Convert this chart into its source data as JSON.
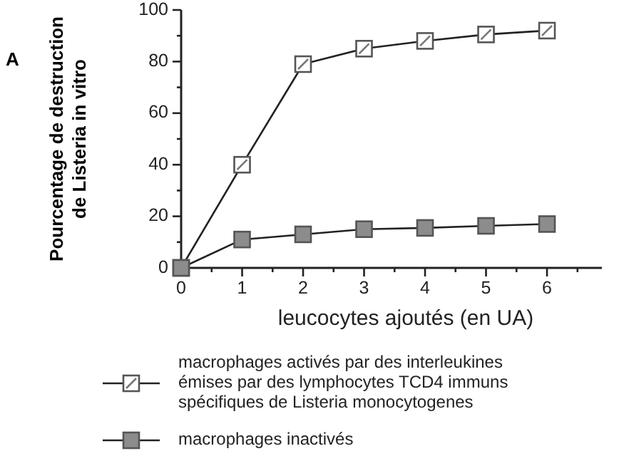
{
  "chart_data": {
    "type": "line",
    "title": "A",
    "xlabel": "leucocytes ajoutés (en UA)",
    "ylabel": "Pourcentage de destruction de Listeria in vitro",
    "x": [
      0,
      1,
      2,
      3,
      4,
      5,
      6
    ],
    "series": [
      {
        "name": "macrophages activés par des interleukines émises par des lymphocytes TCD4 immuns spécifiques de Listeria monocytogenes",
        "color": "#ffffff",
        "values": [
          0,
          40,
          79,
          85,
          88,
          90.5,
          92
        ]
      },
      {
        "name": "macrophages inactivés",
        "color": "#8c8c8c",
        "values": [
          0,
          11,
          13,
          15,
          15.5,
          16.3,
          17
        ]
      }
    ],
    "xlim": [
      0,
      6.9
    ],
    "xticks": [
      0,
      {
        "value": 0.5,
        "label": null
      },
      1,
      {
        "value": 1.5,
        "label": null
      },
      2,
      {
        "value": 2.5,
        "label": null
      },
      3,
      {
        "value": 3.5,
        "label": null
      },
      4,
      {
        "value": 4.5,
        "label": null
      },
      5,
      {
        "value": 5.5,
        "label": null
      },
      6,
      {
        "value": 6.5,
        "label": null
      }
    ],
    "ylim": [
      0,
      100
    ],
    "yticks": [
      0,
      {
        "value": 10,
        "label": null
      },
      20,
      {
        "value": 30,
        "label": null
      },
      40,
      {
        "value": 50,
        "label": null
      },
      60,
      {
        "value": 70,
        "label": null
      },
      80,
      {
        "value": 90,
        "label": null
      },
      100
    ],
    "grid": false,
    "legend": "bottom",
    "marker": "square",
    "line_style": "solid"
  }
}
